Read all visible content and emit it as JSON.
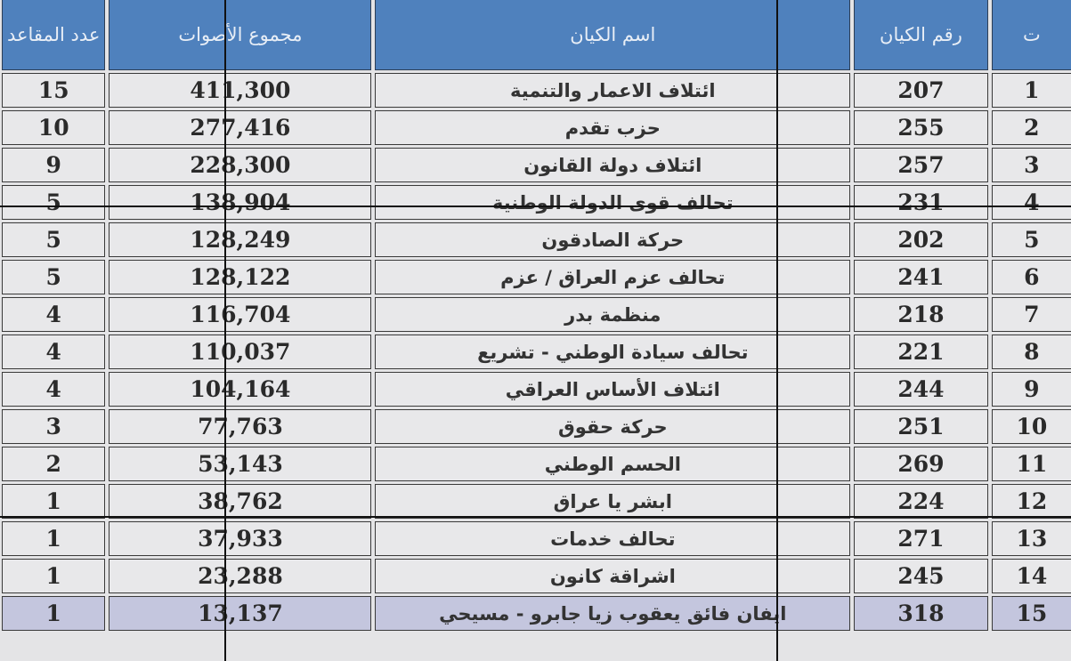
{
  "headers": {
    "index": "ت",
    "entity_number": "رقم الكيان",
    "entity_name": "اسم الكيان",
    "total_votes": "مجموع الأصوات",
    "seats": "عدد المقاعد"
  },
  "rows": [
    {
      "index": "1",
      "entity_number": "207",
      "entity_name": "ائتلاف الاعمار والتنمية",
      "total_votes": "411,300",
      "seats": "15"
    },
    {
      "index": "2",
      "entity_number": "255",
      "entity_name": "حزب تقدم",
      "total_votes": "277,416",
      "seats": "10"
    },
    {
      "index": "3",
      "entity_number": "257",
      "entity_name": "ائتلاف دولة القانون",
      "total_votes": "228,300",
      "seats": "9"
    },
    {
      "index": "4",
      "entity_number": "231",
      "entity_name": "تحالف قوى الدولة الوطنية",
      "total_votes": "138,904",
      "seats": "5"
    },
    {
      "index": "5",
      "entity_number": "202",
      "entity_name": "حركة الصادقون",
      "total_votes": "128,249",
      "seats": "5"
    },
    {
      "index": "6",
      "entity_number": "241",
      "entity_name": "تحالف عزم العراق / عزم",
      "total_votes": "128,122",
      "seats": "5"
    },
    {
      "index": "7",
      "entity_number": "218",
      "entity_name": "منظمة بدر",
      "total_votes": "116,704",
      "seats": "4"
    },
    {
      "index": "8",
      "entity_number": "221",
      "entity_name": "تحالف سيادة الوطني - تشريع",
      "total_votes": "110,037",
      "seats": "4"
    },
    {
      "index": "9",
      "entity_number": "244",
      "entity_name": "ائتلاف الأساس العراقي",
      "total_votes": "104,164",
      "seats": "4"
    },
    {
      "index": "10",
      "entity_number": "251",
      "entity_name": "حركة حقوق",
      "total_votes": "77,763",
      "seats": "3"
    },
    {
      "index": "11",
      "entity_number": "269",
      "entity_name": "الحسم الوطني",
      "total_votes": "53,143",
      "seats": "2"
    },
    {
      "index": "12",
      "entity_number": "224",
      "entity_name": "ابشر يا عراق",
      "total_votes": "38,762",
      "seats": "1"
    },
    {
      "index": "13",
      "entity_number": "271",
      "entity_name": "تحالف خدمات",
      "total_votes": "37,933",
      "seats": "1"
    },
    {
      "index": "14",
      "entity_number": "245",
      "entity_name": "اشراقة كانون",
      "total_votes": "23,288",
      "seats": "1"
    },
    {
      "index": "15",
      "entity_number": "318",
      "entity_name": "ايفان فائق يعقوب زيا جابرو - مسيحي",
      "total_votes": "13,137",
      "seats": "1"
    }
  ],
  "colors": {
    "header_bg": "#4f81bd",
    "row_bg": "#e8e8ea",
    "highlight_row_bg": "#c4c6de"
  }
}
